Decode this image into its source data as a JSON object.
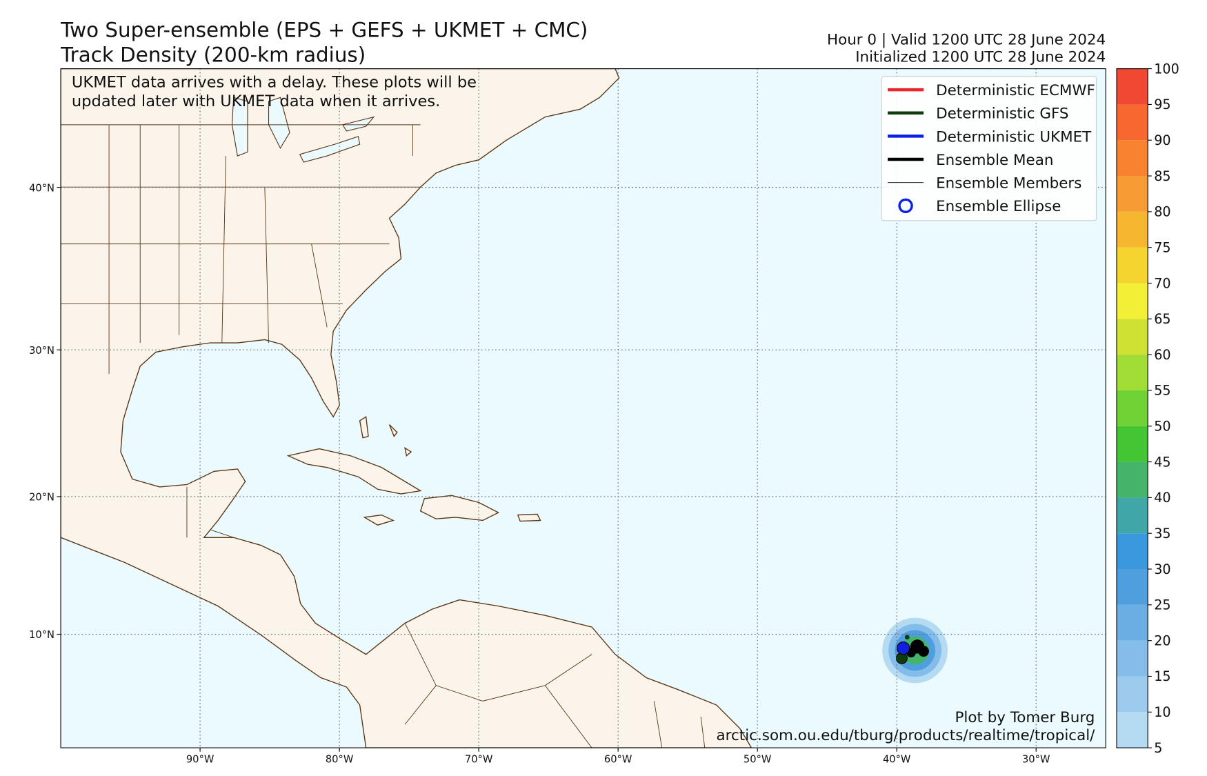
{
  "header": {
    "title_lines": [
      "Two Super-ensemble (EPS + GEFS + UKMET + CMC)",
      "Track Density (200-km radius)"
    ],
    "info_lines": [
      "Hour 0 | Valid 1200 UTC 28 June 2024",
      "Initialized 1200 UTC 28 June 2024"
    ]
  },
  "map": {
    "xlim": [
      -100,
      -25
    ],
    "ylim": [
      1.5,
      46.5
    ],
    "grid": true,
    "lon_ticks": [
      {
        "value": -90,
        "label": "90°W"
      },
      {
        "value": -80,
        "label": "80°W"
      },
      {
        "value": -70,
        "label": "70°W"
      },
      {
        "value": -60,
        "label": "60°W"
      },
      {
        "value": -50,
        "label": "50°W"
      },
      {
        "value": -40,
        "label": "40°W"
      },
      {
        "value": -30,
        "label": "30°W"
      }
    ],
    "lat_ticks": [
      {
        "value": 10,
        "label": "10°N"
      },
      {
        "value": 20,
        "label": "20°N"
      },
      {
        "value": 30,
        "label": "30°N"
      },
      {
        "value": 40,
        "label": "40°N"
      }
    ],
    "note_lines": [
      "UKMET data arrives with a delay. These plots will be",
      "updated later with UKMET data when it arrives."
    ],
    "credit_lines": [
      "Plot by Tomer Burg",
      "arctic.som.ou.edu/tburg/products/realtime/tropical/"
    ]
  },
  "legend": [
    {
      "name": "Deterministic ECMWF",
      "color": "#e8262a",
      "symbol": "thick-line"
    },
    {
      "name": "Deterministic GFS",
      "color": "#0d3d0d",
      "symbol": "thick-line"
    },
    {
      "name": "Deterministic UKMET",
      "color": "#0a1ee8",
      "symbol": "thick-line"
    },
    {
      "name": "Ensemble Mean",
      "color": "#000000",
      "symbol": "thick-line"
    },
    {
      "name": "Ensemble Members",
      "color": "#000000",
      "symbol": "thin-line"
    },
    {
      "name": "Ensemble Ellipse",
      "color": "#0a1ee8",
      "symbol": "circle"
    }
  ],
  "colorbar": {
    "ticks": [
      5,
      10,
      15,
      20,
      25,
      30,
      35,
      40,
      45,
      50,
      55,
      60,
      65,
      70,
      75,
      80,
      85,
      90,
      95,
      100
    ],
    "colors": [
      "#b4dbf2",
      "#9ccbee",
      "#84bde9",
      "#6aaee4",
      "#4f9fdf",
      "#3a98de",
      "#40a6a8",
      "#44b46a",
      "#44c634",
      "#70d234",
      "#a2dd36",
      "#cde232",
      "#f3ef36",
      "#f5d430",
      "#f6b630",
      "#f79c32",
      "#f8822f",
      "#f6682f",
      "#f04832"
    ]
  }
}
